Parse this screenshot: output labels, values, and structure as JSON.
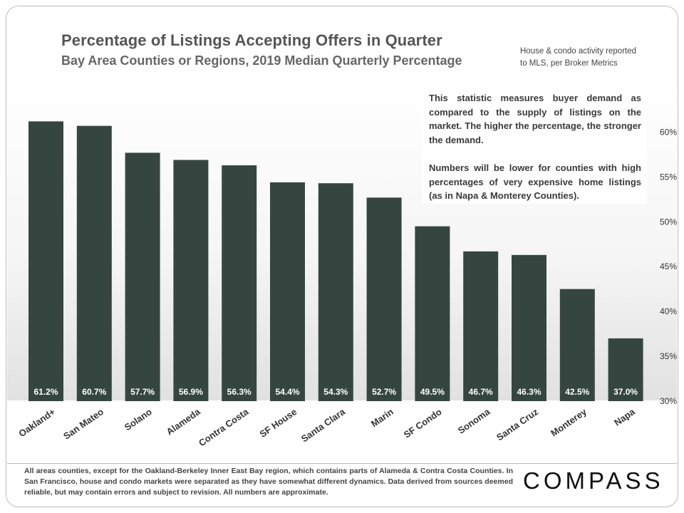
{
  "header": {
    "title": "Percentage of Listings Accepting Offers in Quarter",
    "subtitle": "Bay Area Counties or Regions, 2019 Median Quarterly Percentage",
    "source_line1": "House & condo activity reported",
    "source_line2": "to MLS, per Broker Metrics"
  },
  "note": {
    "paragraph1": "This statistic measures buyer demand as compared to the supply of listings on the market. The higher the percentage, the stronger the demand.",
    "paragraph2": "Numbers will be lower for counties with high percentages of very expensive home listings (as in Napa & Monterey Counties)."
  },
  "footer": {
    "footnote": "All areas counties, except for the Oakland-Berkeley Inner East Bay region, which contains parts of Alameda & Contra Costa Counties. In San Francisco, house and condo markets were separated as they have somewhat different dynamics. Data derived from sources deemed reliable, but may contain errors and subject to revision. All numbers are approximate.",
    "logo": "COMPASS"
  },
  "colors": {
    "bar": "#354640",
    "label_text": "#ffffff",
    "axis_text": "#333333"
  },
  "chart_data": {
    "type": "bar",
    "title": "Percentage of Listings Accepting Offers in Quarter",
    "subtitle": "Bay Area Counties or Regions, 2019 Median Quarterly Percentage",
    "categories": [
      "Oakland+",
      "San Mateo",
      "Solano",
      "Alameda",
      "Contra Costa",
      "SF House",
      "Santa Clara",
      "Marin",
      "SF Condo",
      "Sonoma",
      "Santa Cruz",
      "Monterey",
      "Napa"
    ],
    "values": [
      61.2,
      60.7,
      57.7,
      56.9,
      56.3,
      54.4,
      54.3,
      52.7,
      49.5,
      46.7,
      46.3,
      42.5,
      37.0
    ],
    "value_labels": [
      "61.2%",
      "60.7%",
      "57.7%",
      "56.9%",
      "56.3%",
      "54.4%",
      "54.3%",
      "52.7%",
      "49.5%",
      "46.7%",
      "46.3%",
      "42.5%",
      "37.0%"
    ],
    "y_ticks": [
      30,
      35,
      40,
      45,
      50,
      55,
      60
    ],
    "y_tick_labels": [
      "30%",
      "35%",
      "40%",
      "45%",
      "50%",
      "55%",
      "60%"
    ],
    "ylim": [
      30,
      62.5
    ],
    "y_axis_side": "right",
    "xlabel": "",
    "ylabel": "",
    "grid": false,
    "legend": "none"
  }
}
